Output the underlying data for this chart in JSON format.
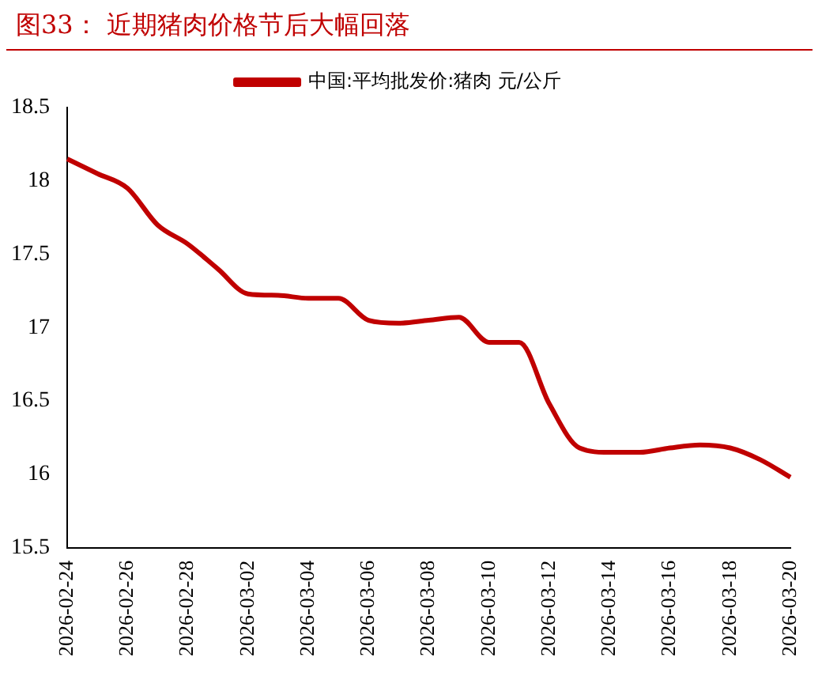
{
  "chart_data": {
    "type": "line",
    "title": "图33：  近期猪肉价格节后大幅回落",
    "categories": [
      "2026-02-24",
      null,
      "2026-02-26",
      null,
      "2026-02-28",
      null,
      "2026-03-02",
      null,
      "2026-03-04",
      null,
      "2026-03-06",
      null,
      "2026-03-08",
      null,
      "2026-03-10",
      null,
      "2026-03-12",
      null,
      "2026-03-14",
      null,
      "2026-03-16",
      null,
      "2026-03-18",
      null,
      "2026-03-20"
    ],
    "series": [
      {
        "name": "中国:平均批发价:猪肉 元/公斤",
        "color": "#c00000",
        "values": [
          18.15,
          18.05,
          17.95,
          17.7,
          17.57,
          17.4,
          17.23,
          17.22,
          17.2,
          17.2,
          17.05,
          17.03,
          17.05,
          17.07,
          16.9,
          16.9,
          16.48,
          16.18,
          16.15,
          16.15,
          16.18,
          16.2,
          16.18,
          16.1,
          15.98
        ]
      }
    ],
    "ylim": [
      15.5,
      18.5
    ],
    "yticks": [
      15.5,
      16,
      16.5,
      17,
      17.5,
      18,
      18.5
    ],
    "grid": false,
    "legend": "top",
    "marker": "none",
    "line_style": "solid"
  }
}
